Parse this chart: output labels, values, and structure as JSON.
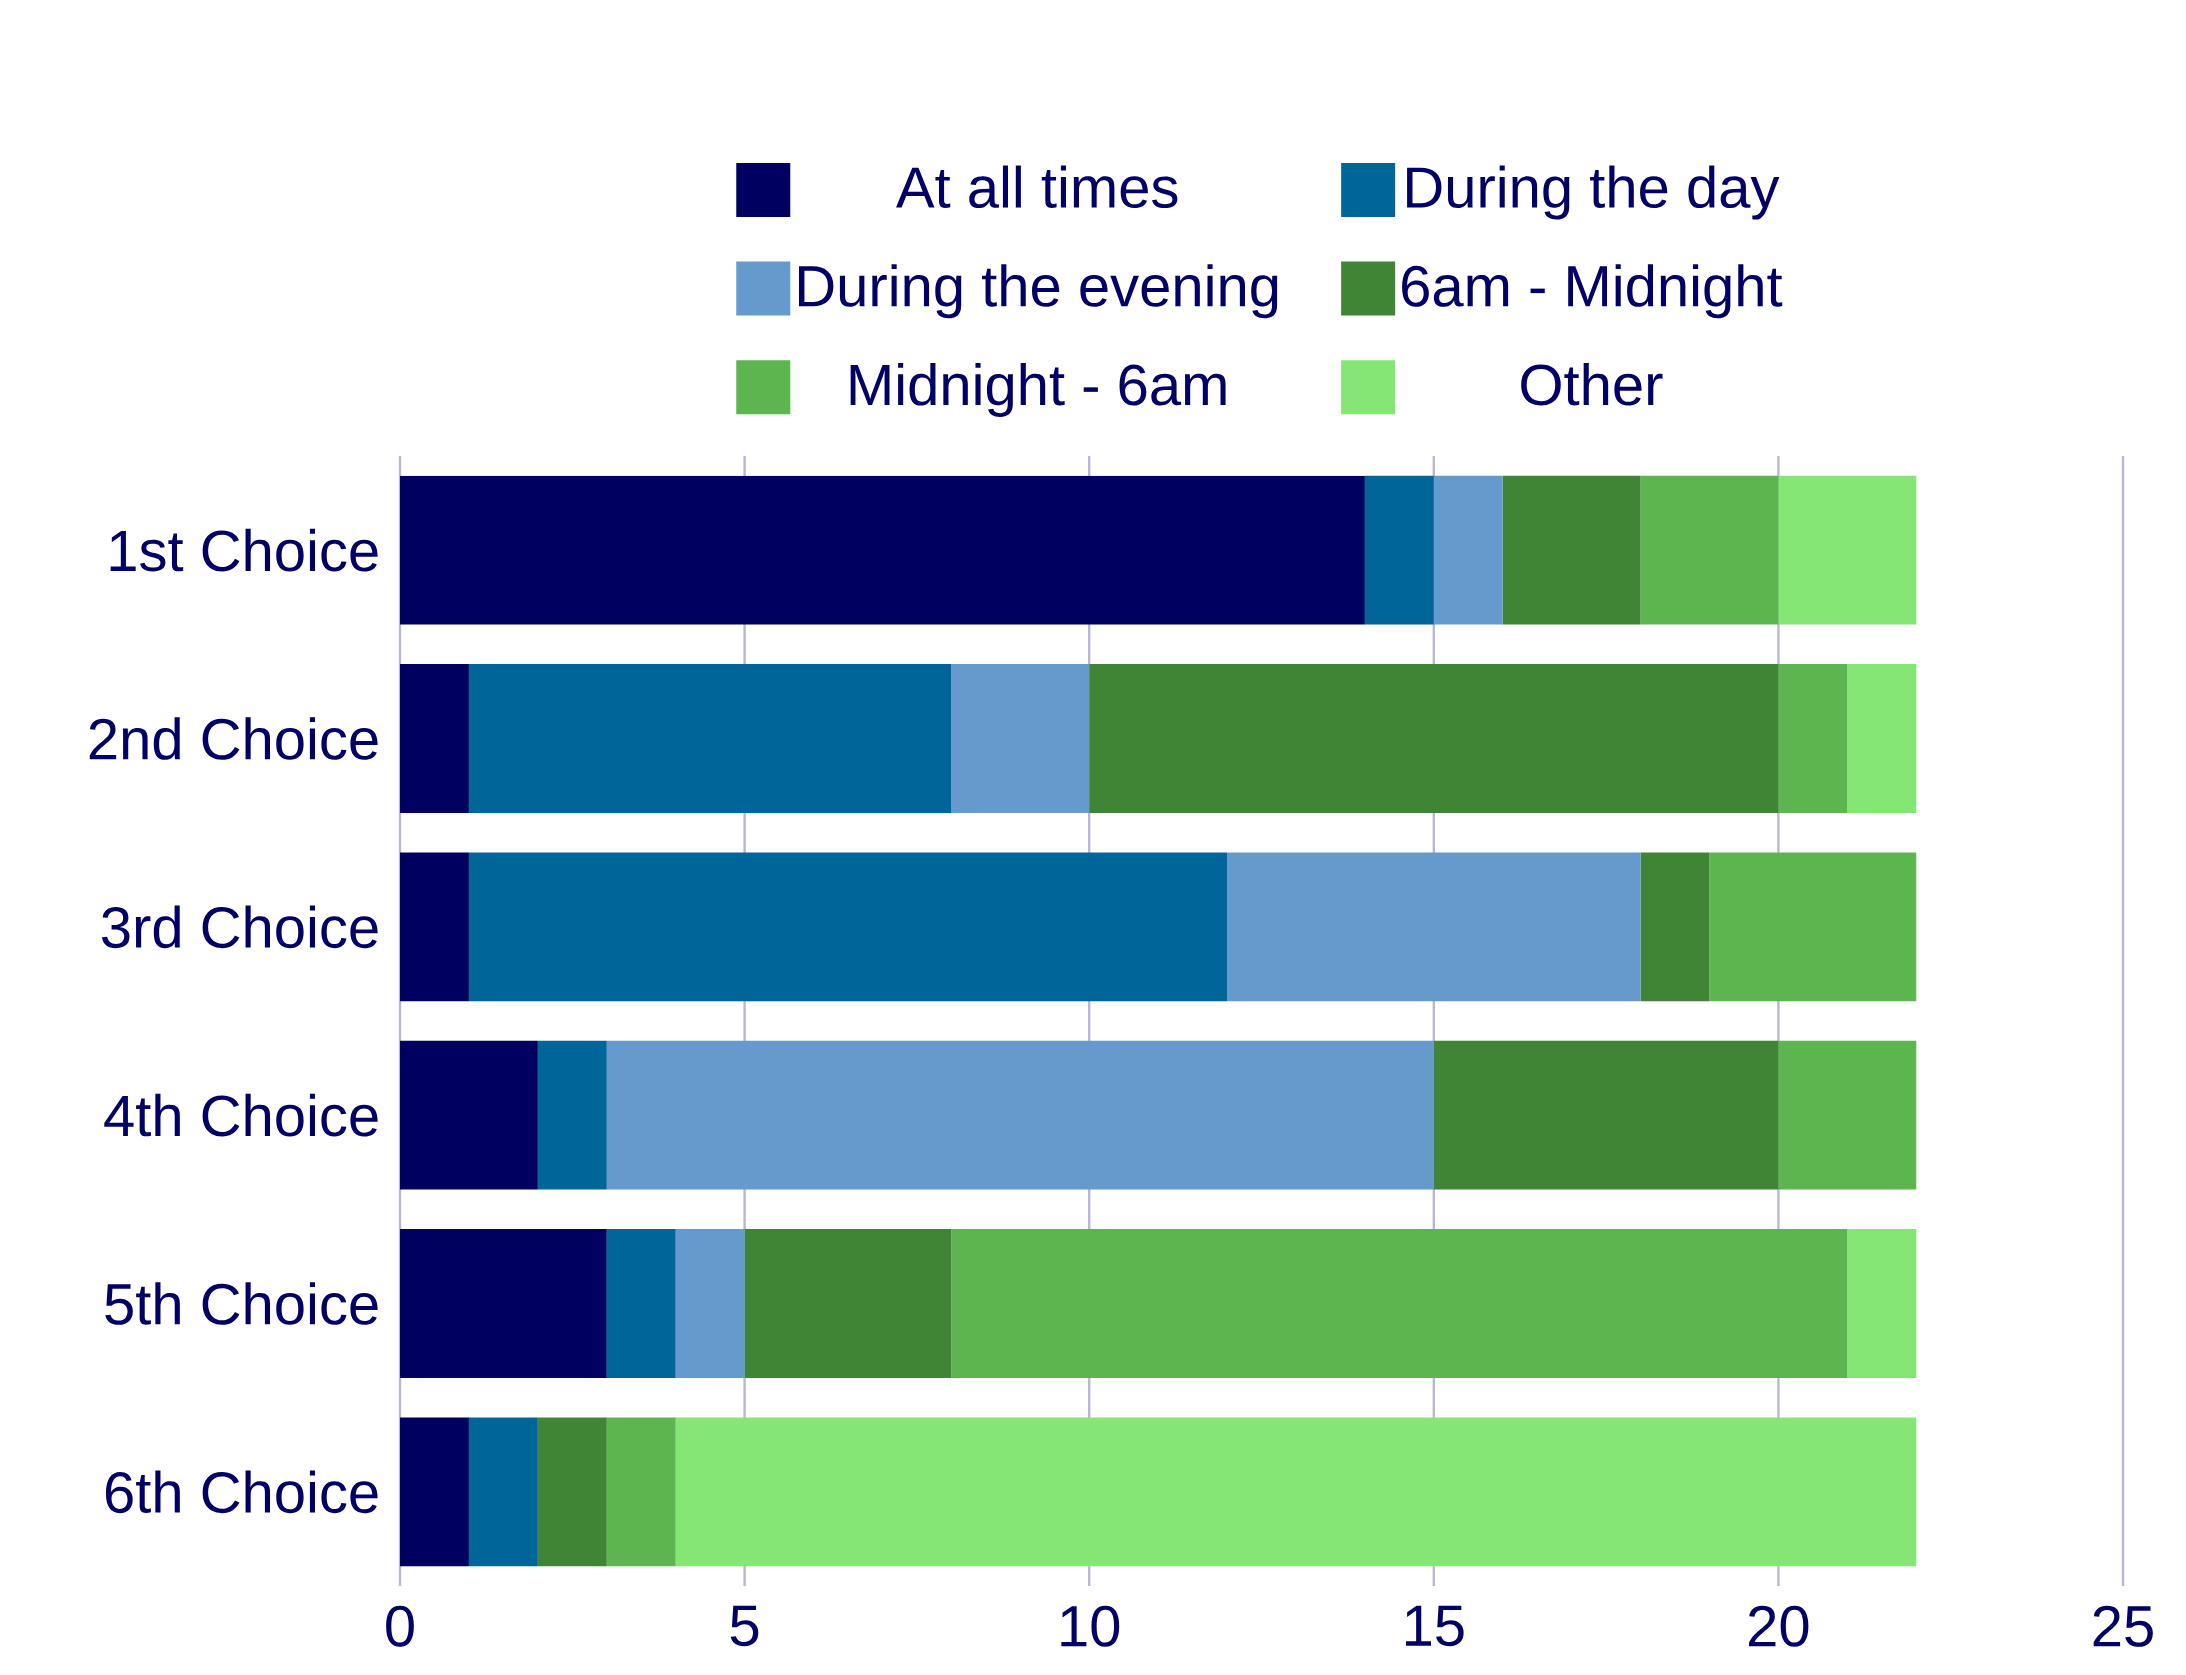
{
  "chart_data": {
    "type": "bar",
    "orientation": "horizontal",
    "stacked": true,
    "categories": [
      "1st Choice",
      "2nd Choice",
      "3rd Choice",
      "4th Choice",
      "5th Choice",
      "6th Choice"
    ],
    "series": [
      {
        "name": "At all times",
        "color": "#000060",
        "values": [
          14,
          1,
          1,
          2,
          3,
          1
        ]
      },
      {
        "name": "During the day",
        "color": "#006699",
        "values": [
          1,
          7,
          11,
          1,
          1,
          1
        ]
      },
      {
        "name": "During the evening",
        "color": "#6699cc",
        "values": [
          1,
          2,
          6,
          12,
          1,
          0
        ]
      },
      {
        "name": "6am - Midnight",
        "color": "#408536",
        "values": [
          2,
          10,
          1,
          5,
          3,
          1
        ]
      },
      {
        "name": "Midnight - 6am",
        "color": "#5cb54f",
        "values": [
          2,
          1,
          3,
          2,
          13,
          1
        ]
      },
      {
        "name": "Other",
        "color": "#85e676",
        "values": [
          2,
          1,
          0,
          0,
          1,
          18
        ]
      }
    ],
    "xlim": [
      0,
      25
    ],
    "xticks": [
      0,
      5,
      10,
      15,
      20,
      25
    ],
    "grid": "x",
    "legend": "top"
  }
}
